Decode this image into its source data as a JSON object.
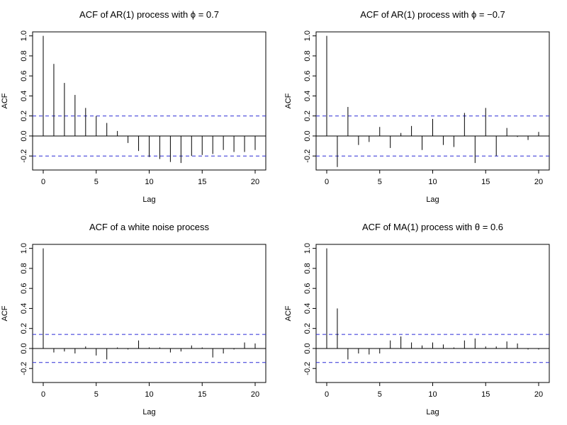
{
  "chart_data": [
    {
      "type": "bar",
      "subtype": "acf-spike",
      "title": "ACF of AR(1) process with ϕ = 0.7",
      "xlabel": "Lag",
      "ylabel": "ACF",
      "xlim": [
        0,
        20
      ],
      "ylim": [
        -0.3,
        1.0
      ],
      "x_ticks": [
        "0",
        "5",
        "10",
        "15",
        "20"
      ],
      "y_ticks": [
        "-0.2",
        "0.0",
        "0.2",
        "0.4",
        "0.6",
        "0.8",
        "1.0"
      ],
      "x": [
        0,
        1,
        2,
        3,
        4,
        5,
        6,
        7,
        8,
        9,
        10,
        11,
        12,
        13,
        14,
        15,
        16,
        17,
        18,
        19,
        20
      ],
      "values": [
        1.0,
        0.72,
        0.53,
        0.41,
        0.28,
        0.2,
        0.13,
        0.05,
        -0.07,
        -0.15,
        -0.21,
        -0.23,
        -0.26,
        -0.27,
        -0.2,
        -0.19,
        -0.18,
        -0.14,
        -0.16,
        -0.16,
        -0.14
      ],
      "confidence_band": [
        -0.2,
        0.2
      ],
      "colors": {
        "spike": "#000000",
        "band": "#2b2bd6"
      }
    },
    {
      "type": "bar",
      "subtype": "acf-spike",
      "title": "ACF of AR(1) process with ϕ = −0.7",
      "xlabel": "Lag",
      "ylabel": "ACF",
      "xlim": [
        0,
        20
      ],
      "ylim": [
        -0.3,
        1.0
      ],
      "x_ticks": [
        "0",
        "5",
        "10",
        "15",
        "20"
      ],
      "y_ticks": [
        "-0.2",
        "0.0",
        "0.2",
        "0.4",
        "0.6",
        "0.8",
        "1.0"
      ],
      "x": [
        0,
        1,
        2,
        3,
        4,
        5,
        6,
        7,
        8,
        9,
        10,
        11,
        12,
        13,
        14,
        15,
        16,
        17,
        18,
        19,
        20
      ],
      "values": [
        1.0,
        -0.31,
        0.29,
        -0.09,
        -0.06,
        0.09,
        -0.12,
        0.03,
        0.1,
        -0.14,
        0.17,
        -0.09,
        -0.11,
        0.23,
        -0.27,
        0.28,
        -0.2,
        0.08,
        -0.01,
        -0.04,
        0.04
      ],
      "confidence_band": [
        -0.2,
        0.2
      ],
      "colors": {
        "spike": "#000000",
        "band": "#2b2bd6"
      }
    },
    {
      "type": "bar",
      "subtype": "acf-spike",
      "title": "ACF of a white noise process",
      "xlabel": "Lag",
      "ylabel": "ACF",
      "xlim": [
        0,
        20
      ],
      "ylim": [
        -0.3,
        1.0
      ],
      "x_ticks": [
        "0",
        "5",
        "10",
        "15",
        "20"
      ],
      "y_ticks": [
        "-0.2",
        "0.0",
        "0.2",
        "0.4",
        "0.6",
        "0.8",
        "1.0"
      ],
      "x": [
        0,
        1,
        2,
        3,
        4,
        5,
        6,
        7,
        8,
        9,
        10,
        11,
        12,
        13,
        14,
        15,
        16,
        17,
        18,
        19,
        20
      ],
      "values": [
        1.0,
        -0.04,
        -0.03,
        -0.05,
        0.02,
        -0.07,
        -0.11,
        0.01,
        -0.01,
        0.08,
        0.01,
        0.01,
        -0.04,
        -0.03,
        0.03,
        0.01,
        -0.09,
        -0.05,
        -0.01,
        0.06,
        0.05
      ],
      "confidence_band": [
        -0.14,
        0.14
      ],
      "colors": {
        "spike": "#000000",
        "band": "#2b2bd6"
      }
    },
    {
      "type": "bar",
      "subtype": "acf-spike",
      "title": "ACF of MA(1) process with θ = 0.6",
      "xlabel": "Lag",
      "ylabel": "ACF",
      "xlim": [
        0,
        20
      ],
      "ylim": [
        -0.3,
        1.0
      ],
      "x_ticks": [
        "0",
        "5",
        "10",
        "15",
        "20"
      ],
      "y_ticks": [
        "-0.2",
        "0.0",
        "0.2",
        "0.4",
        "0.6",
        "0.8",
        "1.0"
      ],
      "x": [
        0,
        1,
        2,
        3,
        4,
        5,
        6,
        7,
        8,
        9,
        10,
        11,
        12,
        13,
        14,
        15,
        16,
        17,
        18,
        19,
        20
      ],
      "values": [
        1.0,
        0.4,
        -0.11,
        -0.05,
        -0.06,
        -0.05,
        0.08,
        0.12,
        0.06,
        0.03,
        0.06,
        0.04,
        0.01,
        0.08,
        0.1,
        0.02,
        0.02,
        0.07,
        0.05,
        -0.01,
        -0.01
      ],
      "confidence_band": [
        -0.14,
        0.14
      ],
      "colors": {
        "spike": "#000000",
        "band": "#2b2bd6"
      }
    }
  ]
}
